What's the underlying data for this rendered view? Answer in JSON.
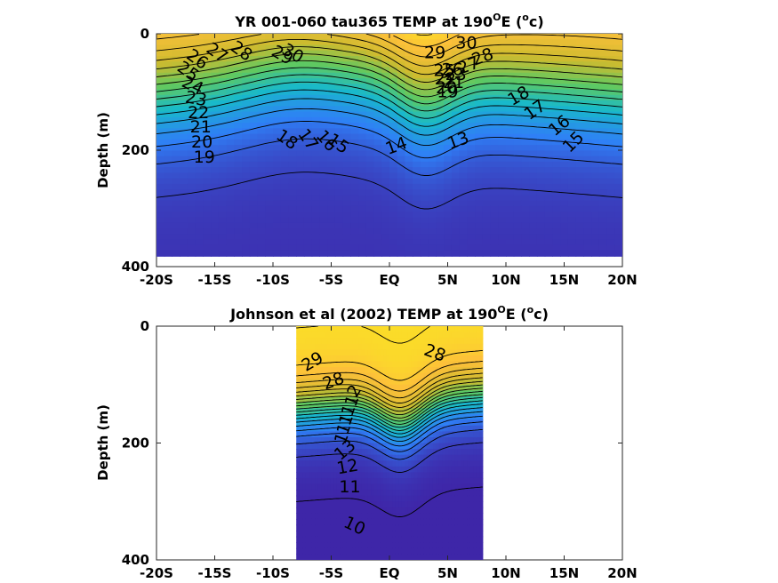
{
  "chart_data": [
    {
      "type": "heatmap",
      "title": "YR 001-060 tau365 TEMP at 190",
      "title_sup": "O",
      "title_tail_pre": "E (",
      "title_unit_sup": "o",
      "title_tail_post": "c)",
      "ylabel": "Depth (m)",
      "xlim": [
        -20,
        20
      ],
      "ylim": [
        400,
        0
      ],
      "data_extent": {
        "x": [
          -20,
          20
        ],
        "y": [
          0,
          382
        ]
      },
      "x_ticks": [
        -20,
        -15,
        -10,
        -5,
        0,
        5,
        10,
        15,
        20
      ],
      "x_tick_labels": [
        "-20S",
        "-15S",
        "-10S",
        "-5S",
        "EQ",
        "5N",
        "10N",
        "15N",
        "20N"
      ],
      "y_ticks": [
        0,
        200,
        400
      ],
      "y_tick_labels": [
        "0",
        "200",
        "400"
      ],
      "colormap": [
        "#3e26a8",
        "#2f7ff6",
        "#18b9cb",
        "#5ec962",
        "#cdbb2f",
        "#fdc03a",
        "#f9fb15"
      ],
      "color_range": [
        12,
        31
      ],
      "contour_labels": [
        {
          "text": "30",
          "x": 6.6,
          "y": 16,
          "rot": 0
        },
        {
          "text": "30",
          "x": -8.3,
          "y": 34,
          "rot": 30
        },
        {
          "text": "29",
          "x": 3.9,
          "y": 33,
          "rot": 0
        },
        {
          "text": "29",
          "x": -9.2,
          "y": 37,
          "rot": 30
        },
        {
          "text": "28",
          "x": 8.0,
          "y": 40,
          "rot": -20
        },
        {
          "text": "28",
          "x": -12.7,
          "y": 30,
          "rot": 35
        },
        {
          "text": "27",
          "x": -14.8,
          "y": 33,
          "rot": 35
        },
        {
          "text": "27",
          "x": 6.8,
          "y": 55,
          "rot": -20
        },
        {
          "text": "26",
          "x": -16.5,
          "y": 44,
          "rot": 35
        },
        {
          "text": "26",
          "x": 5.4,
          "y": 62,
          "rot": 0
        },
        {
          "text": "25",
          "x": -17.3,
          "y": 65,
          "rot": 35
        },
        {
          "text": "25",
          "x": 4.7,
          "y": 63,
          "rot": 0
        },
        {
          "text": "24",
          "x": -16.9,
          "y": 89,
          "rot": 25
        },
        {
          "text": "23",
          "x": 5.7,
          "y": 70,
          "rot": 0
        },
        {
          "text": "23",
          "x": -16.6,
          "y": 112,
          "rot": 10
        },
        {
          "text": "22",
          "x": 4.8,
          "y": 78,
          "rot": 0
        },
        {
          "text": "22",
          "x": -16.4,
          "y": 136,
          "rot": 0
        },
        {
          "text": "21",
          "x": 5.5,
          "y": 84,
          "rot": 0
        },
        {
          "text": "21",
          "x": -16.2,
          "y": 160,
          "rot": 0
        },
        {
          "text": "20",
          "x": 4.9,
          "y": 93,
          "rot": 0
        },
        {
          "text": "20",
          "x": -16.1,
          "y": 186,
          "rot": 0
        },
        {
          "text": "19",
          "x": 5.0,
          "y": 100,
          "rot": 0
        },
        {
          "text": "19",
          "x": -15.9,
          "y": 212,
          "rot": 0
        },
        {
          "text": "18",
          "x": 11.1,
          "y": 107,
          "rot": -30
        },
        {
          "text": "18",
          "x": -8.8,
          "y": 182,
          "rot": 35
        },
        {
          "text": "17",
          "x": 12.5,
          "y": 131,
          "rot": -35
        },
        {
          "text": "17",
          "x": -7.0,
          "y": 182,
          "rot": 55
        },
        {
          "text": "16",
          "x": 14.6,
          "y": 158,
          "rot": -40
        },
        {
          "text": "16",
          "x": -5.4,
          "y": 184,
          "rot": 50
        },
        {
          "text": "15",
          "x": 15.8,
          "y": 186,
          "rot": -45
        },
        {
          "text": "15",
          "x": -4.4,
          "y": 189,
          "rot": 35
        },
        {
          "text": "14",
          "x": 0.6,
          "y": 193,
          "rot": -20
        },
        {
          "text": "13",
          "x": 5.9,
          "y": 184,
          "rot": -20
        }
      ]
    },
    {
      "type": "heatmap",
      "title": "Johnson et al (2002) TEMP at 190",
      "title_sup": "O",
      "title_tail_pre": "E (",
      "title_unit_sup": "o",
      "title_tail_post": "c)",
      "ylabel": "Depth (m)",
      "xlim": [
        -20,
        20
      ],
      "ylim": [
        400,
        0
      ],
      "data_extent": {
        "x": [
          -8,
          8
        ],
        "y": [
          0,
          400
        ]
      },
      "x_ticks": [
        -20,
        -15,
        -10,
        -5,
        0,
        5,
        10,
        15,
        20
      ],
      "x_tick_labels": [
        "-20S",
        "-15S",
        "-10S",
        "-5S",
        "EQ",
        "5N",
        "10N",
        "15N",
        "20N"
      ],
      "y_ticks": [
        0,
        200,
        400
      ],
      "y_tick_labels": [
        "0",
        "200",
        "400"
      ],
      "colormap": [
        "#3e26a8",
        "#2f7ff6",
        "#18b9cb",
        "#5ec962",
        "#cdbb2f",
        "#fdc03a",
        "#f9fb15"
      ],
      "color_range": [
        9,
        31
      ],
      "contour_labels": [
        {
          "text": "29",
          "x": -6.6,
          "y": 61,
          "rot": -30
        },
        {
          "text": "28",
          "x": 3.9,
          "y": 46,
          "rot": 20
        },
        {
          "text": "28",
          "x": -4.8,
          "y": 94,
          "rot": -20
        },
        {
          "text": "2",
          "x": -3.0,
          "y": 111,
          "rot": -60
        },
        {
          "text": "1",
          "x": -3.2,
          "y": 128,
          "rot": -70
        },
        {
          "text": "1",
          "x": -3.5,
          "y": 144,
          "rot": -70
        },
        {
          "text": "1",
          "x": -3.7,
          "y": 160,
          "rot": -70
        },
        {
          "text": "1",
          "x": -3.9,
          "y": 176,
          "rot": -70
        },
        {
          "text": "1",
          "x": -4.1,
          "y": 192,
          "rot": -70
        },
        {
          "text": "13",
          "x": -3.8,
          "y": 212,
          "rot": -40
        },
        {
          "text": "12",
          "x": -3.6,
          "y": 241,
          "rot": -10
        },
        {
          "text": "11",
          "x": -3.4,
          "y": 275,
          "rot": 0
        },
        {
          "text": "10",
          "x": -3.0,
          "y": 342,
          "rot": 25
        }
      ]
    }
  ]
}
